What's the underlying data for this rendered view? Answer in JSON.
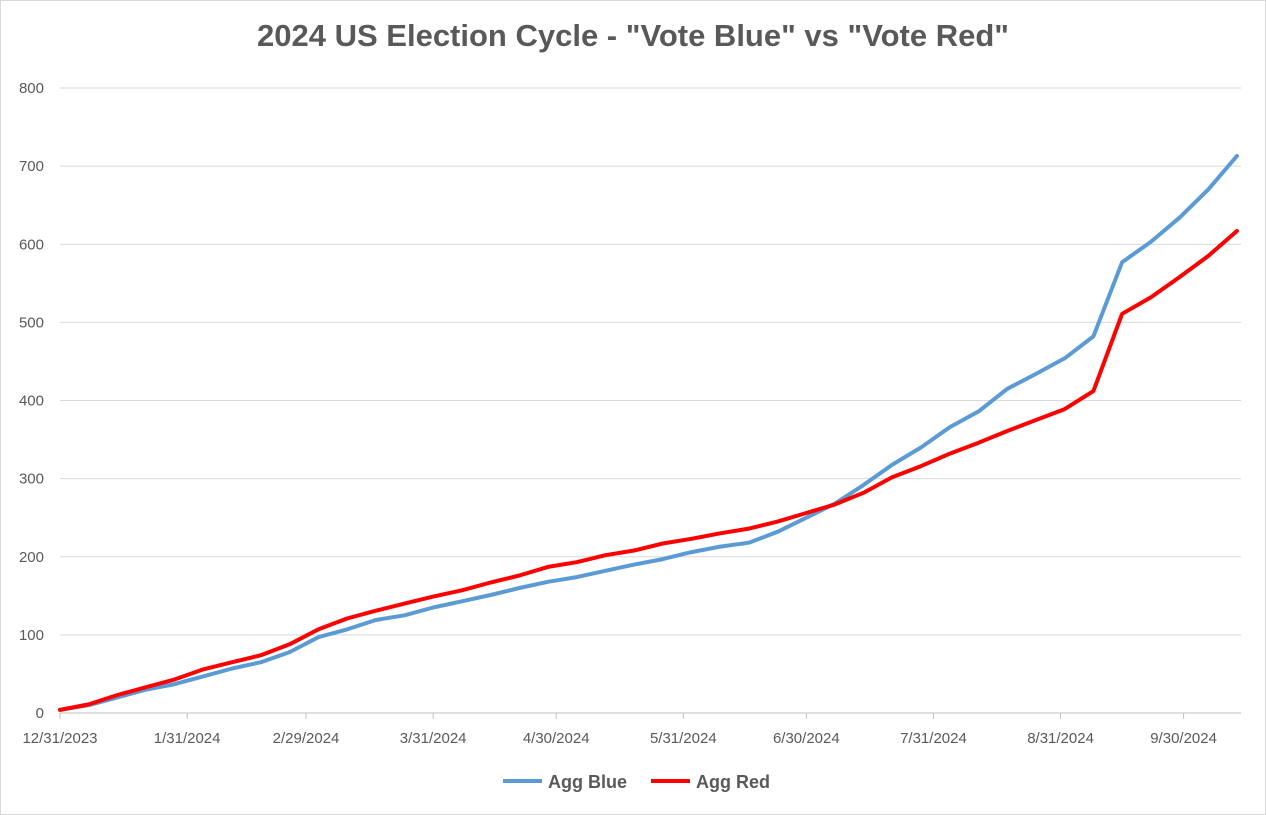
{
  "chart_data": {
    "type": "line",
    "title": "2024 US Election Cycle - \"Vote Blue\" vs \"Vote Red\"",
    "xlabel": "",
    "ylabel": "",
    "x_ticks": [
      "12/31/2023",
      "1/31/2024",
      "2/29/2024",
      "3/31/2024",
      "4/30/2024",
      "5/31/2024",
      "6/30/2024",
      "7/31/2024",
      "8/31/2024",
      "9/30/2024"
    ],
    "xlim": [
      "2023-12-31",
      "2024-10-14"
    ],
    "ylim": [
      0,
      800
    ],
    "y_ticks": [
      0,
      100,
      200,
      300,
      400,
      500,
      600,
      700,
      800
    ],
    "grid": true,
    "legend_position": "bottom",
    "x": [
      "2023-12-31",
      "2024-01-07",
      "2024-01-14",
      "2024-01-21",
      "2024-01-28",
      "2024-02-04",
      "2024-02-11",
      "2024-02-18",
      "2024-02-25",
      "2024-03-03",
      "2024-03-10",
      "2024-03-17",
      "2024-03-24",
      "2024-03-31",
      "2024-04-07",
      "2024-04-14",
      "2024-04-21",
      "2024-04-28",
      "2024-05-05",
      "2024-05-12",
      "2024-05-19",
      "2024-05-26",
      "2024-06-02",
      "2024-06-09",
      "2024-06-16",
      "2024-06-23",
      "2024-06-30",
      "2024-07-07",
      "2024-07-14",
      "2024-07-21",
      "2024-07-28",
      "2024-08-04",
      "2024-08-11",
      "2024-08-18",
      "2024-08-25",
      "2024-09-01",
      "2024-09-08",
      "2024-09-15",
      "2024-09-22",
      "2024-09-29",
      "2024-10-06",
      "2024-10-13"
    ],
    "series": [
      {
        "name": "Agg Blue",
        "color": "#5b9bd5",
        "values": [
          4,
          10,
          20,
          30,
          37,
          47,
          57,
          65,
          78,
          97,
          107,
          119,
          125,
          135,
          143,
          151,
          160,
          168,
          174,
          182,
          190,
          197,
          206,
          213,
          218,
          232,
          250,
          268,
          292,
          318,
          340,
          366,
          386,
          415,
          434,
          454,
          482,
          577,
          603,
          634,
          670,
          713
        ]
      },
      {
        "name": "Agg Red",
        "color": "#ff0000",
        "values": [
          4,
          11,
          23,
          33,
          43,
          56,
          65,
          74,
          88,
          107,
          121,
          131,
          140,
          149,
          157,
          167,
          176,
          187,
          193,
          202,
          208,
          217,
          223,
          230,
          236,
          245,
          256,
          267,
          282,
          302,
          316,
          332,
          346,
          361,
          375,
          389,
          412,
          511,
          532,
          558,
          585,
          617
        ]
      }
    ]
  }
}
